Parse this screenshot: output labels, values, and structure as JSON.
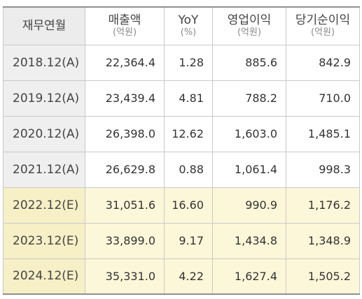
{
  "header": {
    "period": "재무연월",
    "revenue": "매출액",
    "revenue_unit": "(억원)",
    "yoy": "YoY",
    "yoy_unit": "(%)",
    "op_income": "영업이익",
    "op_income_unit": "(억원)",
    "net_income": "당기순이익",
    "net_income_unit": "(억원)"
  },
  "rows": [
    {
      "period": "2018.12(A)",
      "revenue": "22,364.4",
      "yoy": "1.28",
      "op_income": "885.6",
      "net_income": "842.9"
    },
    {
      "period": "2019.12(A)",
      "revenue": "23,439.4",
      "yoy": "4.81",
      "op_income": "788.2",
      "net_income": "710.0"
    },
    {
      "period": "2020.12(A)",
      "revenue": "26,398.0",
      "yoy": "12.62",
      "op_income": "1,603.0",
      "net_income": "1,485.1"
    },
    {
      "period": "2021.12(A)",
      "revenue": "26,629.8",
      "yoy": "0.88",
      "op_income": "1,061.4",
      "net_income": "998.3"
    },
    {
      "period": "2022.12(E)",
      "revenue": "31,051.6",
      "yoy": "16.60",
      "op_income": "990.9",
      "net_income": "1,176.2"
    },
    {
      "period": "2023.12(E)",
      "revenue": "33,899.0",
      "yoy": "9.17",
      "op_income": "1,434.8",
      "net_income": "1,348.9"
    },
    {
      "period": "2024.12(E)",
      "revenue": "35,331.0",
      "yoy": "4.22",
      "op_income": "1,627.4",
      "net_income": "1,505.2"
    }
  ],
  "colors": {
    "label_bg": "#efefef",
    "estimate_bg": "#fdf7d9",
    "estimate_label_bg": "#f7efc6",
    "border": "#c9c9c9"
  }
}
